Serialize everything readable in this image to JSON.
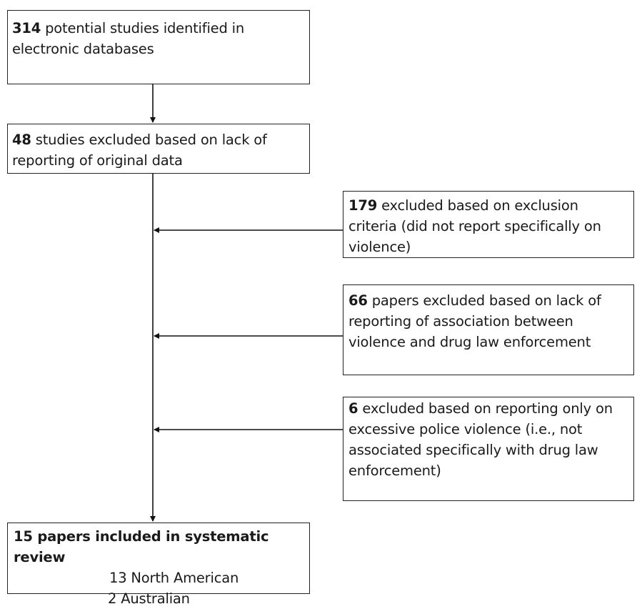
{
  "boxes": {
    "identified": {
      "count": "314",
      "text": " potential studies identified in electronic databases"
    },
    "excluded_original": {
      "count": "48",
      "text": " studies excluded based on lack of reporting of original data"
    },
    "excluded_criteria": {
      "count": "179",
      "text": " excluded based on exclusion criteria (did not report specifically on violence)"
    },
    "excluded_association": {
      "count": "66",
      "text": " papers excluded based on lack of reporting of association between violence and drug law enforcement"
    },
    "excluded_police": {
      "count": "6",
      "text": " excluded based on reporting only on excessive police violence (i.e., not associated specifically with drug law enforcement)"
    },
    "included": {
      "title": "15 papers included in systematic review",
      "north_american": "13 North American",
      "australian": "2 Australian"
    }
  }
}
